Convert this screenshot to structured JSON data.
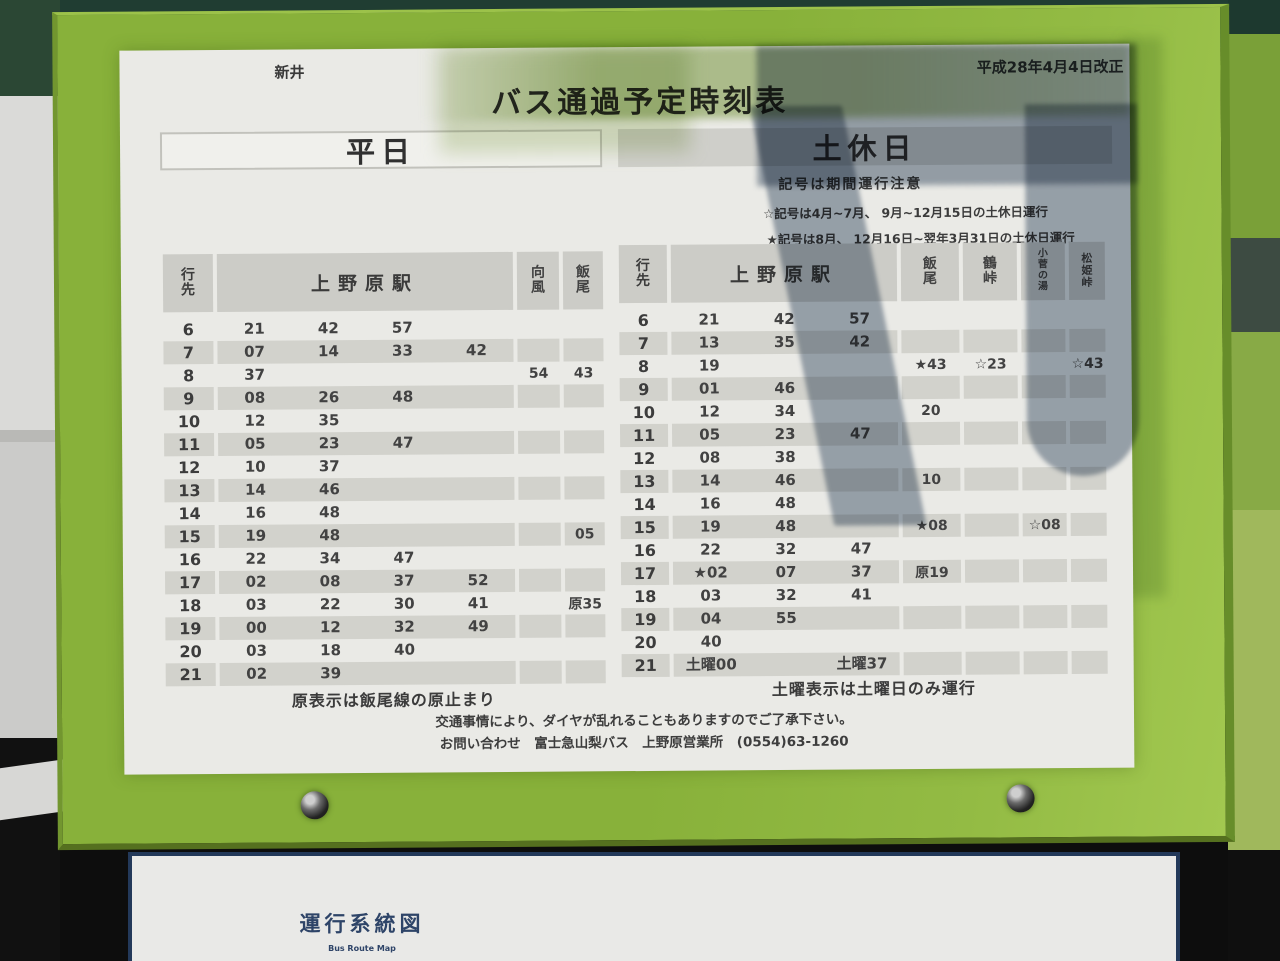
{
  "scene": {
    "frame_green": "#8cb43c",
    "paper_color": "#eaeae6",
    "shadow_slate": "#6b7f96",
    "panel_navy": "#23395a"
  },
  "paper": {
    "stop_name": "新井",
    "title": "バス通過予定時刻表",
    "revision": "平成28年4月4日改正",
    "weekday": {
      "heading": "平日",
      "columns": {
        "destination": "行\n先",
        "station": "上野原駅",
        "mukaze": "向\n風",
        "iio": "飯\n尾"
      },
      "rows": [
        {
          "h": "6",
          "t": [
            "21",
            "42",
            "57",
            ""
          ],
          "m": "",
          "i": ""
        },
        {
          "h": "7",
          "t": [
            "07",
            "14",
            "33",
            "42"
          ],
          "m": "",
          "i": ""
        },
        {
          "h": "8",
          "t": [
            "37",
            "",
            "",
            ""
          ],
          "m": "54",
          "i": "43"
        },
        {
          "h": "9",
          "t": [
            "08",
            "26",
            "48",
            ""
          ],
          "m": "",
          "i": ""
        },
        {
          "h": "10",
          "t": [
            "12",
            "35",
            "",
            ""
          ],
          "m": "",
          "i": ""
        },
        {
          "h": "11",
          "t": [
            "05",
            "23",
            "47",
            ""
          ],
          "m": "",
          "i": ""
        },
        {
          "h": "12",
          "t": [
            "10",
            "37",
            "",
            ""
          ],
          "m": "",
          "i": ""
        },
        {
          "h": "13",
          "t": [
            "14",
            "46",
            "",
            ""
          ],
          "m": "",
          "i": ""
        },
        {
          "h": "14",
          "t": [
            "16",
            "48",
            "",
            ""
          ],
          "m": "",
          "i": ""
        },
        {
          "h": "15",
          "t": [
            "19",
            "48",
            "",
            ""
          ],
          "m": "",
          "i": "05"
        },
        {
          "h": "16",
          "t": [
            "22",
            "34",
            "47",
            ""
          ],
          "m": "",
          "i": ""
        },
        {
          "h": "17",
          "t": [
            "02",
            "08",
            "37",
            "52"
          ],
          "m": "",
          "i": ""
        },
        {
          "h": "18",
          "t": [
            "03",
            "22",
            "30",
            "41"
          ],
          "m": "",
          "i": "原35"
        },
        {
          "h": "19",
          "t": [
            "00",
            "12",
            "32",
            "49"
          ],
          "m": "",
          "i": ""
        },
        {
          "h": "20",
          "t": [
            "03",
            "18",
            "40",
            ""
          ],
          "m": "",
          "i": ""
        },
        {
          "h": "21",
          "t": [
            "02",
            "39",
            "",
            ""
          ],
          "m": "",
          "i": ""
        }
      ],
      "note": "原表示は飯尾線の原止まり"
    },
    "holiday": {
      "heading": "土休日",
      "notes": [
        "記号は期間運行注意",
        "☆記号は4月~7月、 9月~12月15日の土休日運行",
        "★記号は8月、 12月16日~翌年3月31日の土休日運行"
      ],
      "columns": {
        "destination": "行\n先",
        "station": "上野原駅",
        "iio": "飯\n尾",
        "tsuru": "鶴\n峠",
        "kosuge": "小\n菅\nの\n湯",
        "matsuhime": "松\n姫\n峠"
      },
      "rows": [
        {
          "h": "6",
          "t": [
            "21",
            "42",
            "57"
          ],
          "i": "",
          "tu": "",
          "k": "",
          "ma": ""
        },
        {
          "h": "7",
          "t": [
            "13",
            "35",
            "42"
          ],
          "i": "",
          "tu": "",
          "k": "",
          "ma": ""
        },
        {
          "h": "8",
          "t": [
            "19",
            "",
            ""
          ],
          "i": "★43",
          "tu": "☆23",
          "k": "",
          "ma": "☆43"
        },
        {
          "h": "9",
          "t": [
            "01",
            "46",
            ""
          ],
          "i": "",
          "tu": "",
          "k": "",
          "ma": ""
        },
        {
          "h": "10",
          "t": [
            "12",
            "34",
            ""
          ],
          "i": "20",
          "tu": "",
          "k": "",
          "ma": ""
        },
        {
          "h": "11",
          "t": [
            "05",
            "23",
            "47"
          ],
          "i": "",
          "tu": "",
          "k": "",
          "ma": ""
        },
        {
          "h": "12",
          "t": [
            "08",
            "38",
            ""
          ],
          "i": "",
          "tu": "",
          "k": "",
          "ma": ""
        },
        {
          "h": "13",
          "t": [
            "14",
            "46",
            ""
          ],
          "i": "10",
          "tu": "",
          "k": "",
          "ma": ""
        },
        {
          "h": "14",
          "t": [
            "16",
            "48",
            ""
          ],
          "i": "",
          "tu": "",
          "k": "",
          "ma": ""
        },
        {
          "h": "15",
          "t": [
            "19",
            "48",
            ""
          ],
          "i": "★08",
          "tu": "",
          "k": "☆08",
          "ma": ""
        },
        {
          "h": "16",
          "t": [
            "22",
            "32",
            "47"
          ],
          "i": "",
          "tu": "",
          "k": "",
          "ma": ""
        },
        {
          "h": "17",
          "t": [
            "★02",
            "07",
            "37"
          ],
          "i": "原19",
          "tu": "",
          "k": "",
          "ma": ""
        },
        {
          "h": "18",
          "t": [
            "03",
            "32",
            "41"
          ],
          "i": "",
          "tu": "",
          "k": "",
          "ma": ""
        },
        {
          "h": "19",
          "t": [
            "04",
            "55",
            ""
          ],
          "i": "",
          "tu": "",
          "k": "",
          "ma": ""
        },
        {
          "h": "20",
          "t": [
            "40",
            "",
            ""
          ],
          "i": "",
          "tu": "",
          "k": "",
          "ma": ""
        },
        {
          "h": "21",
          "t": [
            "土曜00",
            "",
            "土曜37"
          ],
          "i": "",
          "tu": "",
          "k": "",
          "ma": ""
        }
      ],
      "note": "土曜表示は土曜日のみ運行"
    },
    "footer_line1": "交通事情により、ダイヤが乱れることもありますのでご了承下さい。",
    "footer_line2": "お問い合わせ　富士急山梨バス　上野原営業所　(0554)63-1260"
  },
  "bottom_panel": {
    "title": "運行系統図",
    "subtitle": "Bus Route Map"
  }
}
